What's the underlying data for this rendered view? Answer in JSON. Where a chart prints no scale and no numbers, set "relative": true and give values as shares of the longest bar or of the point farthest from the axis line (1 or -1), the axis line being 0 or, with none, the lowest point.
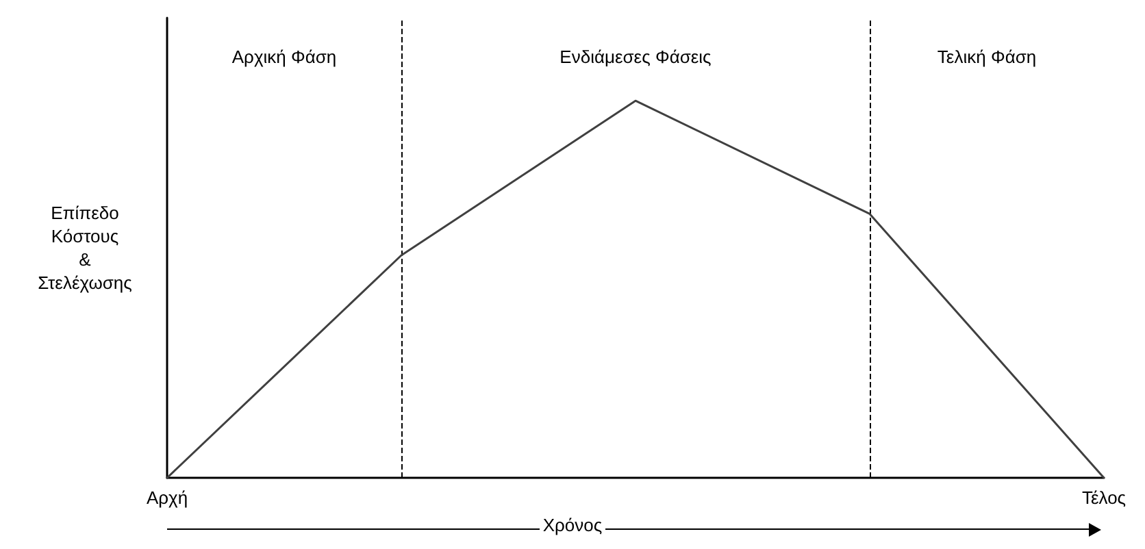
{
  "chart_data": {
    "type": "line",
    "relative": true,
    "ylabel": "Επίπεδο Κόστους & Στελέχωσης",
    "xlabel": "Χρόνος",
    "categories": [
      "Αρχή",
      null,
      null,
      null,
      "Τέλος"
    ],
    "series": [
      {
        "color": "#404040",
        "values": [
          0,
          0.59,
          1,
          0.7,
          0
        ]
      }
    ],
    "annotations": [
      "Αρχική Φάση",
      "Ενδιάμεσες Φάσεις",
      "Τελική Φάση"
    ],
    "marker": "none",
    "line_style": "solid"
  }
}
